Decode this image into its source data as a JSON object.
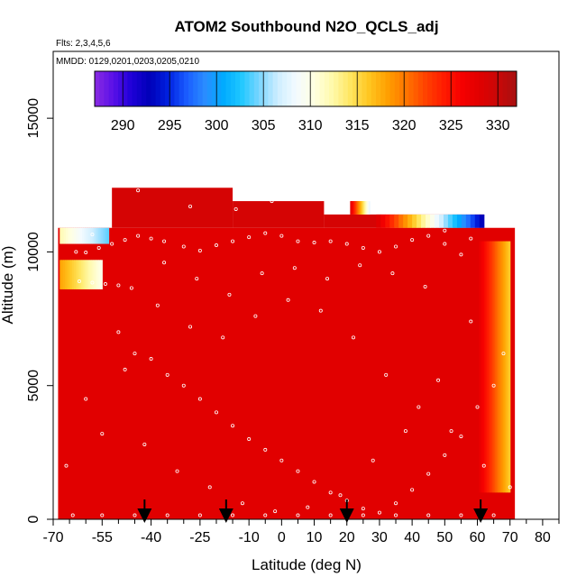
{
  "chart_data": {
    "type": "heatmap",
    "title": "ATOM2 Southbound N2O_QCLS_adj",
    "annotations": {
      "flights": "Flts: 2,3,4,5,6",
      "dates": "MMDD: 0129,0201,0203,0205,0210"
    },
    "xlabel": "Latitude (deg N)",
    "ylabel": "Altitude (m)",
    "xlim": [
      -70,
      85
    ],
    "ylim": [
      0,
      17500
    ],
    "x_ticks": [
      -70,
      -55,
      -40,
      -25,
      -10,
      0,
      10,
      20,
      30,
      40,
      50,
      60,
      70,
      80
    ],
    "x_tick_labels": [
      "-70",
      "-55",
      "-40",
      "-25",
      "-10",
      "0",
      "10",
      "20",
      "30",
      "40",
      "50",
      "60",
      "70",
      "80"
    ],
    "x_minor_ticks": [
      -65,
      -60,
      -50,
      -45,
      -35,
      -30,
      -20,
      -15,
      -5,
      5,
      15,
      25,
      35,
      45,
      55,
      65,
      75,
      85
    ],
    "y_ticks": [
      0,
      5000,
      10000,
      15000
    ],
    "y_tick_labels": [
      "0",
      "5000",
      "10000",
      "15000"
    ],
    "colorbar": {
      "min": 287,
      "max": 332,
      "ticks": [
        290,
        295,
        300,
        305,
        310,
        315,
        320,
        325,
        330
      ],
      "tick_labels": [
        "290",
        "295",
        "300",
        "305",
        "310",
        "315",
        "320",
        "325",
        "330"
      ],
      "colors": [
        "#8a2be2",
        "#5a10e8",
        "#1e00d8",
        "#0000b8",
        "#0020e0",
        "#1a5cff",
        "#2a8cff",
        "#00aaff",
        "#20c8ff",
        "#7dd6ff",
        "#cfeeff",
        "#f4fbff",
        "#ffffe0",
        "#fff9a8",
        "#ffe45c",
        "#ffc41e",
        "#ff9e00",
        "#ff7400",
        "#ff4400",
        "#ff1c00",
        "#f60000",
        "#e00000",
        "#c80808",
        "#a81010"
      ]
    },
    "field": {
      "background_value": 328,
      "regions": [
        {
          "name": "main-curtain",
          "lat": [
            -68.5,
            71.5
          ],
          "alt": [
            0,
            10900
          ],
          "value": 328
        },
        {
          "name": "high-leg",
          "lat": [
            -52,
            -15
          ],
          "alt": [
            10900,
            12400
          ],
          "value": 329
        },
        {
          "name": "high-leg-east",
          "lat": [
            -15,
            13
          ],
          "alt": [
            10900,
            11900
          ],
          "value": 329
        },
        {
          "name": "upper-leg",
          "lat": [
            13,
            62
          ],
          "alt": [
            10900,
            11400
          ],
          "value": 329
        }
      ],
      "gradients": [
        {
          "name": "strat-wedge-upper",
          "lat": [
            21,
            27
          ],
          "alt": [
            11400,
            11900
          ],
          "from": 328,
          "to": 308
        },
        {
          "name": "strat-wedge-lower",
          "lat": [
            29,
            62
          ],
          "alt": [
            10900,
            11400
          ],
          "from": 328,
          "to": 293
        },
        {
          "name": "south-column-upper",
          "lat": [
            -68,
            -53
          ],
          "alt": [
            10300,
            10900
          ],
          "from": 312,
          "to": 304
        },
        {
          "name": "south-column-mid",
          "lat": [
            -68,
            -55
          ],
          "alt": [
            8600,
            9700
          ],
          "from": 318,
          "to": 310
        },
        {
          "name": "north-edge",
          "lat": [
            60,
            70
          ],
          "alt": [
            1000,
            10400
          ],
          "from": 328,
          "to": 316
        }
      ]
    },
    "obs_points": [
      [
        -60,
        9980
      ],
      [
        -56,
        10150
      ],
      [
        -52,
        10300
      ],
      [
        -48,
        10450
      ],
      [
        -44,
        10600
      ],
      [
        -40,
        10500
      ],
      [
        -36,
        10400
      ],
      [
        -30,
        10200
      ],
      [
        -25,
        10050
      ],
      [
        -20,
        10250
      ],
      [
        -15,
        10400
      ],
      [
        -10,
        10550
      ],
      [
        -5,
        10700
      ],
      [
        0,
        10600
      ],
      [
        5,
        10400
      ],
      [
        10,
        10350
      ],
      [
        15,
        10400
      ],
      [
        20,
        10300
      ],
      [
        25,
        10150
      ],
      [
        30,
        10000
      ],
      [
        35,
        10200
      ],
      [
        40,
        10450
      ],
      [
        45,
        10600
      ],
      [
        50,
        10300
      ],
      [
        55,
        9900
      ],
      [
        -62,
        8900
      ],
      [
        -58,
        8850
      ],
      [
        -54,
        8800
      ],
      [
        -50,
        8750
      ],
      [
        -46,
        8650
      ],
      [
        -50,
        7000
      ],
      [
        -45,
        6200
      ],
      [
        -40,
        6000
      ],
      [
        -35,
        5400
      ],
      [
        -30,
        5000
      ],
      [
        -25,
        4500
      ],
      [
        -20,
        4000
      ],
      [
        -15,
        3500
      ],
      [
        -10,
        3000
      ],
      [
        -5,
        2600
      ],
      [
        0,
        2200
      ],
      [
        5,
        1800
      ],
      [
        10,
        1400
      ],
      [
        15,
        1000
      ],
      [
        20,
        700
      ],
      [
        25,
        400
      ],
      [
        30,
        250
      ],
      [
        35,
        600
      ],
      [
        40,
        1100
      ],
      [
        45,
        1700
      ],
      [
        50,
        2400
      ],
      [
        55,
        3100
      ],
      [
        60,
        4200
      ],
      [
        65,
        5000
      ],
      [
        68,
        6200
      ],
      [
        -66,
        2000
      ],
      [
        -60,
        4500
      ],
      [
        -55,
        3200
      ],
      [
        -48,
        5600
      ],
      [
        -38,
        8000
      ],
      [
        -28,
        7200
      ],
      [
        -18,
        6800
      ],
      [
        -8,
        7600
      ],
      [
        2,
        8200
      ],
      [
        12,
        7800
      ],
      [
        22,
        6800
      ],
      [
        32,
        5400
      ],
      [
        42,
        4200
      ],
      [
        52,
        3300
      ],
      [
        62,
        2000
      ],
      [
        -42,
        2800
      ],
      [
        -32,
        1800
      ],
      [
        -22,
        1200
      ],
      [
        -12,
        600
      ],
      [
        -2,
        300
      ],
      [
        8,
        450
      ],
      [
        18,
        900
      ],
      [
        28,
        2200
      ],
      [
        38,
        3300
      ],
      [
        48,
        5200
      ],
      [
        58,
        7400
      ],
      [
        44,
        8700
      ],
      [
        34,
        9200
      ],
      [
        24,
        9500
      ],
      [
        14,
        9000
      ],
      [
        4,
        9400
      ],
      [
        -6,
        9200
      ],
      [
        -16,
        8400
      ],
      [
        -26,
        9000
      ],
      [
        -36,
        9600
      ],
      [
        -64,
        150
      ],
      [
        -55,
        150
      ],
      [
        -45,
        150
      ],
      [
        -35,
        150
      ],
      [
        -25,
        150
      ],
      [
        -15,
        150
      ],
      [
        -5,
        150
      ],
      [
        5,
        150
      ],
      [
        15,
        150
      ],
      [
        25,
        150
      ],
      [
        35,
        150
      ],
      [
        45,
        150
      ],
      [
        55,
        150
      ],
      [
        65,
        150
      ],
      [
        70,
        1200
      ],
      [
        -56,
        12100
      ],
      [
        -53,
        11900
      ],
      [
        -28,
        11700
      ],
      [
        -14,
        11600
      ],
      [
        -3,
        11900
      ],
      [
        50,
        10800
      ],
      [
        58,
        10500
      ],
      [
        -58,
        10650
      ],
      [
        -63,
        10000
      ],
      [
        -44,
        12300
      ]
    ],
    "arrows_lat": [
      -42,
      -17,
      20,
      61
    ]
  }
}
